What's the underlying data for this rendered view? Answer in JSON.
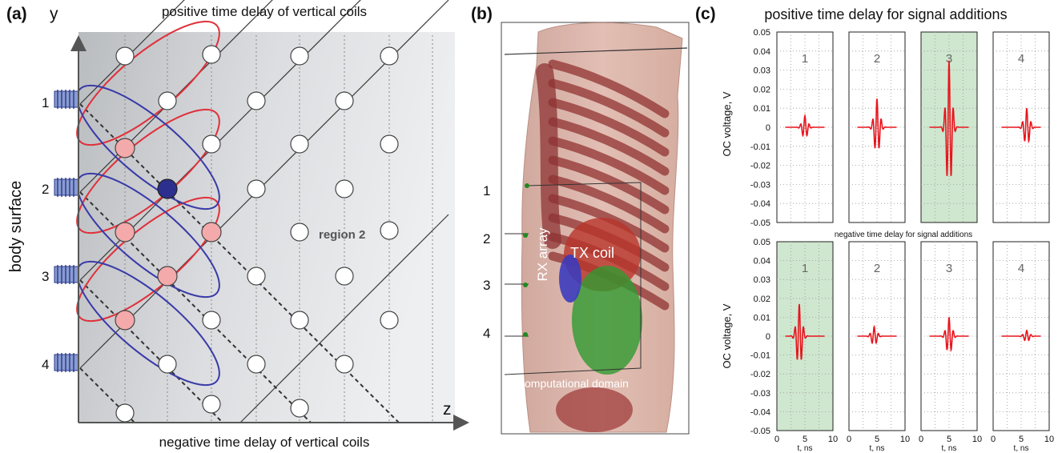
{
  "panel_a": {
    "tag": "(a)",
    "title_top": "positive time delay of vertical coils",
    "title_bottom": "negative time delay of vertical coils",
    "y_axis_letter": "y",
    "z_axis_letter": "z",
    "side_label": "body surface",
    "coil_labels": [
      "1",
      "2",
      "3",
      "4"
    ],
    "region_label": "region 2",
    "colors": {
      "pink": "#f4a9ab",
      "blue": "#2d2f8e",
      "red_ellipse": "#e0303a",
      "blue_ellipse": "#3a3aa8",
      "panel_gray": "#c8c8c8"
    }
  },
  "panel_b": {
    "tag": "(b)",
    "array_numbers": [
      "1",
      "2",
      "3",
      "4"
    ],
    "rx_label": "RX array",
    "tx_label": "TX coil",
    "domain_label": "computational domain"
  },
  "panel_c": {
    "tag": "(c)",
    "title_top": "positive time delay for signal additions",
    "title_bottom": "negative time delay for signal additions",
    "ylabel": "OC voltage, V",
    "xlabel": "t, ns",
    "y_ticks": [
      "0.05",
      "0.04",
      "0.03",
      "0.02",
      "0.01",
      "0",
      "-0.01",
      "-0.02",
      "-0.03",
      "-0.04",
      "-0.05"
    ],
    "x_ticks": [
      "0",
      "5",
      "10"
    ],
    "highlight_color": "#cfe6cf",
    "signal_color": "#e8141c"
  },
  "chart_data": [
    {
      "type": "line",
      "title": "positive time delay for signal additions",
      "xlabel": "t, ns",
      "ylabel": "OC voltage, V",
      "xlim": [
        0,
        10
      ],
      "ylim": [
        -0.05,
        0.05
      ],
      "grid": true,
      "panels": [
        {
          "label": "1",
          "highlight": false,
          "peak_time": 5,
          "peak_amplitude": 0.006
        },
        {
          "label": "2",
          "highlight": false,
          "peak_time": 5,
          "peak_amplitude": 0.015
        },
        {
          "label": "3",
          "highlight": true,
          "peak_time": 5,
          "peak_amplitude": 0.035
        },
        {
          "label": "4",
          "highlight": false,
          "peak_time": 6,
          "peak_amplitude": 0.01
        }
      ]
    },
    {
      "type": "line",
      "title": "negative time delay for signal additions",
      "xlabel": "t, ns",
      "ylabel": "OC voltage, V",
      "xlim": [
        0,
        10
      ],
      "ylim": [
        -0.05,
        0.05
      ],
      "grid": true,
      "panels": [
        {
          "label": "1",
          "highlight": true,
          "peak_time": 4,
          "peak_amplitude": 0.017
        },
        {
          "label": "2",
          "highlight": false,
          "peak_time": 4.5,
          "peak_amplitude": 0.005
        },
        {
          "label": "3",
          "highlight": false,
          "peak_time": 5,
          "peak_amplitude": 0.01
        },
        {
          "label": "4",
          "highlight": false,
          "peak_time": 6,
          "peak_amplitude": 0.003
        }
      ]
    }
  ]
}
